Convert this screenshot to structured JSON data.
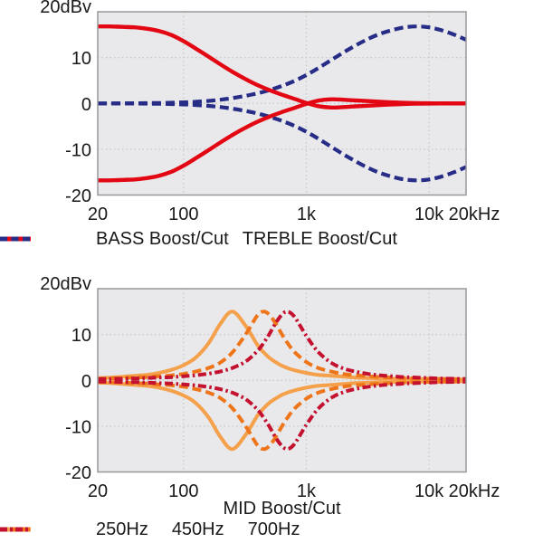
{
  "figure": {
    "background": "#ffffff",
    "text_color": "#1a1a1a",
    "plot_bg": "#e9e9eb",
    "grid_color": "#c7c7ca",
    "border_color": "#98989c",
    "y_axis_unit_label": "20dBv"
  },
  "chart_data": [
    {
      "id": "bass-treble",
      "type": "line",
      "title": "",
      "xlabel": "",
      "ylabel": "dBv",
      "x_scale": "log",
      "x_range": [
        20,
        20000
      ],
      "y_range": [
        -20,
        20
      ],
      "grid": {
        "x_at": [
          100,
          1000,
          10000
        ],
        "y_at": [
          10,
          0,
          -10
        ]
      },
      "x_ticks": [
        {
          "f": 20,
          "label": "20"
        },
        {
          "f": 100,
          "label": "100"
        },
        {
          "f": 1000,
          "label": "1k"
        },
        {
          "f": 10000,
          "label": "10k"
        },
        {
          "f": 20000,
          "label": "20kHz"
        }
      ],
      "y_ticks": [
        {
          "v": 20,
          "label": "20dBv"
        },
        {
          "v": 10,
          "label": "10"
        },
        {
          "v": 0,
          "label": "0"
        },
        {
          "v": -10,
          "label": "-10"
        },
        {
          "v": -20,
          "label": "-20"
        }
      ],
      "freqs_hz": [
        20,
        25,
        32,
        40,
        50,
        63,
        80,
        100,
        125,
        160,
        200,
        250,
        320,
        400,
        500,
        630,
        800,
        1000,
        1250,
        1600,
        2000,
        2500,
        3200,
        4000,
        5000,
        6300,
        8000,
        10000,
        12500,
        16000,
        20000
      ],
      "series": [
        {
          "id": "treble-boost",
          "name": "TREBLE Boost",
          "color": "#272c87",
          "style": "dashed",
          "width": 4.2,
          "values_db": [
            0,
            0,
            0,
            0.02,
            0.05,
            0.08,
            0.14,
            0.22,
            0.35,
            0.55,
            0.8,
            1.15,
            1.65,
            2.2,
            2.9,
            3.8,
            4.9,
            6.2,
            7.7,
            9.5,
            11.1,
            12.6,
            14.1,
            15.2,
            16,
            16.6,
            16.8,
            16.6,
            16,
            15,
            13.9
          ]
        },
        {
          "id": "treble-cut",
          "name": "TREBLE Cut",
          "color": "#272c87",
          "style": "dashed",
          "width": 4.2,
          "values_db": [
            0,
            0,
            0,
            -0.02,
            -0.05,
            -0.08,
            -0.14,
            -0.22,
            -0.35,
            -0.55,
            -0.8,
            -1.15,
            -1.65,
            -2.2,
            -2.9,
            -3.8,
            -4.9,
            -6.2,
            -7.7,
            -9.5,
            -11.1,
            -12.6,
            -14.1,
            -15.2,
            -16,
            -16.6,
            -16.8,
            -16.6,
            -16,
            -15,
            -13.9
          ]
        },
        {
          "id": "bass-boost",
          "name": "BASS Boost",
          "color": "#e30613",
          "style": "solid",
          "width": 4.4,
          "values_db": [
            16.8,
            16.8,
            16.7,
            16.6,
            16.3,
            15.8,
            14.9,
            13.6,
            12,
            10.2,
            8.5,
            6.9,
            5.3,
            4,
            2.9,
            1.9,
            1,
            0.1,
            -0.6,
            -0.9,
            -0.8,
            -0.65,
            -0.5,
            -0.35,
            -0.22,
            -0.12,
            -0.06,
            -0.02,
            0,
            0,
            0
          ]
        },
        {
          "id": "bass-cut",
          "name": "BASS Cut",
          "color": "#e30613",
          "style": "solid",
          "width": 4.4,
          "values_db": [
            -16.8,
            -16.8,
            -16.7,
            -16.6,
            -16.3,
            -15.8,
            -14.9,
            -13.6,
            -12,
            -10.2,
            -8.5,
            -6.9,
            -5.3,
            -4,
            -2.9,
            -1.9,
            -1,
            -0.1,
            0.6,
            0.9,
            0.8,
            0.65,
            0.5,
            0.35,
            0.22,
            0.12,
            0.06,
            0.02,
            0,
            0,
            0
          ]
        }
      ],
      "legend": [
        {
          "id": "bass",
          "label": "BASS Boost/Cut",
          "color": "#e30613",
          "style": "solid"
        },
        {
          "id": "treble",
          "label": "TREBLE Boost/Cut",
          "color": "#272c87",
          "style": "dashed"
        }
      ]
    },
    {
      "id": "mid",
      "type": "line",
      "title": "",
      "xlabel": "MID Boost/Cut",
      "ylabel": "dBv",
      "x_scale": "log",
      "x_range": [
        20,
        20000
      ],
      "y_range": [
        -20,
        20
      ],
      "grid": {
        "x_at": [
          100,
          1000,
          10000
        ],
        "y_at": [
          10,
          0,
          -10
        ]
      },
      "x_ticks": [
        {
          "f": 20,
          "label": "20"
        },
        {
          "f": 100,
          "label": "100"
        },
        {
          "f": 1000,
          "label": "1k"
        },
        {
          "f": 10000,
          "label": "10k"
        },
        {
          "f": 20000,
          "label": "20kHz"
        }
      ],
      "y_ticks": [
        {
          "v": 20,
          "label": "20dBv"
        },
        {
          "v": 10,
          "label": "10"
        },
        {
          "v": 0,
          "label": "0"
        },
        {
          "v": -10,
          "label": "-10"
        },
        {
          "v": -20,
          "label": "-20"
        }
      ],
      "freqs_hz": [
        20,
        25,
        32,
        40,
        50,
        63,
        80,
        100,
        125,
        160,
        200,
        250,
        320,
        400,
        450,
        500,
        560,
        630,
        700,
        800,
        1000,
        1250,
        1600,
        2000,
        2500,
        3200,
        4000,
        5000,
        6300,
        8000,
        10000,
        12500,
        16000,
        20000
      ],
      "series": [
        {
          "id": "mid-250-boost",
          "name": "250Hz Boost",
          "color": "#f5a04a",
          "style": "solid",
          "width": 4,
          "values_db": [
            0.5,
            0.6,
            0.8,
            1,
            1.2,
            1.6,
            2.3,
            3.3,
            4.9,
            8.1,
            12.4,
            15,
            11.9,
            7.7,
            6.1,
            4.9,
            4,
            3.2,
            2.7,
            2.2,
            1.6,
            1.2,
            1,
            0.8,
            0.6,
            0.5,
            0.4,
            0.4,
            0.3,
            0.3,
            0.25,
            0.2,
            0.2,
            0.2
          ]
        },
        {
          "id": "mid-250-cut",
          "name": "250Hz Cut",
          "color": "#f5a04a",
          "style": "solid",
          "width": 4,
          "values_db": [
            -0.5,
            -0.6,
            -0.8,
            -1,
            -1.2,
            -1.6,
            -2.3,
            -3.3,
            -4.9,
            -8.1,
            -12.4,
            -15,
            -11.9,
            -7.7,
            -6.1,
            -4.9,
            -4,
            -3.2,
            -2.7,
            -2.2,
            -1.6,
            -1.2,
            -1,
            -0.8,
            -0.6,
            -0.5,
            -0.4,
            -0.4,
            -0.3,
            -0.3,
            -0.25,
            -0.2,
            -0.2,
            -0.2
          ]
        },
        {
          "id": "mid-450-boost",
          "name": "450Hz Boost",
          "color": "#ee7519",
          "style": "dashed",
          "width": 4,
          "values_db": [
            0.35,
            0.4,
            0.5,
            0.6,
            0.7,
            0.9,
            1.1,
            1.4,
            1.9,
            2.7,
            3.9,
            6.1,
            10,
            14.2,
            15,
            14.3,
            12.5,
            10.1,
            8.2,
            6.2,
            4,
            2.7,
            1.9,
            1.4,
            1.1,
            0.9,
            0.7,
            0.6,
            0.5,
            0.4,
            0.35,
            0.3,
            0.27,
            0.24
          ]
        },
        {
          "id": "mid-450-cut",
          "name": "450Hz Cut",
          "color": "#ee7519",
          "style": "dashed",
          "width": 4,
          "values_db": [
            -0.35,
            -0.4,
            -0.5,
            -0.6,
            -0.7,
            -0.9,
            -1.1,
            -1.4,
            -1.9,
            -2.7,
            -3.9,
            -6.1,
            -10,
            -14.2,
            -15,
            -14.3,
            -12.5,
            -10.1,
            -8.2,
            -6.2,
            -4,
            -2.7,
            -1.9,
            -1.4,
            -1.1,
            -0.9,
            -0.7,
            -0.6,
            -0.5,
            -0.4,
            -0.35,
            -0.3,
            -0.27,
            -0.24
          ]
        },
        {
          "id": "mid-700-boost",
          "name": "700Hz Boost",
          "color": "#c3112f",
          "style": "dashdot",
          "width": 4,
          "values_db": [
            0.27,
            0.3,
            0.36,
            0.4,
            0.5,
            0.6,
            0.7,
            0.9,
            1.1,
            1.45,
            1.95,
            2.7,
            4.1,
            6.4,
            8.2,
            10.1,
            12.4,
            14.3,
            15,
            13.9,
            9.7,
            6.2,
            3.8,
            2.6,
            1.9,
            1.4,
            1.1,
            0.9,
            0.7,
            0.6,
            0.5,
            0.4,
            0.35,
            0.3
          ]
        },
        {
          "id": "mid-700-cut",
          "name": "700Hz Cut",
          "color": "#c3112f",
          "style": "dashdot",
          "width": 4,
          "values_db": [
            -0.27,
            -0.3,
            -0.36,
            -0.4,
            -0.5,
            -0.6,
            -0.7,
            -0.9,
            -1.1,
            -1.45,
            -1.95,
            -2.7,
            -4.1,
            -6.4,
            -8.2,
            -10.1,
            -12.4,
            -14.3,
            -15,
            -13.9,
            -9.7,
            -6.2,
            -3.8,
            -2.6,
            -1.9,
            -1.4,
            -1.1,
            -0.9,
            -0.7,
            -0.6,
            -0.5,
            -0.4,
            -0.35,
            -0.3
          ]
        }
      ],
      "legend": [
        {
          "id": "250hz",
          "label": "250Hz",
          "color": "#f5a04a",
          "style": "solid"
        },
        {
          "id": "450hz",
          "label": "450Hz",
          "color": "#ee7519",
          "style": "dashed"
        },
        {
          "id": "700hz",
          "label": "700Hz",
          "color": "#c3112f",
          "style": "dashdot"
        }
      ]
    }
  ]
}
